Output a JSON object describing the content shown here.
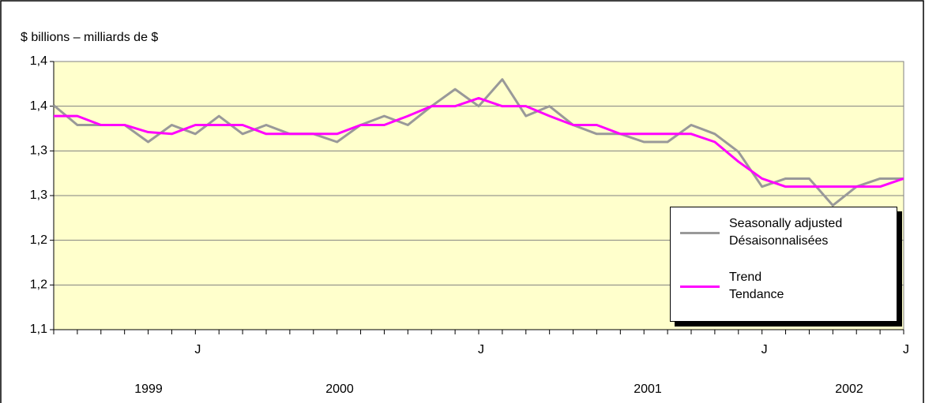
{
  "chart_data": {
    "type": "line",
    "title": "$ billions – milliards de $",
    "categories": [
      null,
      null,
      null,
      null,
      null,
      null,
      "J",
      null,
      null,
      null,
      null,
      null,
      null,
      null,
      null,
      null,
      null,
      null,
      "J",
      null,
      null,
      null,
      null,
      null,
      null,
      null,
      null,
      null,
      null,
      null,
      "J",
      null,
      null,
      null,
      null,
      null,
      "J"
    ],
    "year_labels": [
      "1999",
      "2000",
      "2001",
      "2002"
    ],
    "series": [
      {
        "name": "Seasonally adjusted\nDésaisonnalisées",
        "color": "#999999",
        "values": [
          1.351,
          1.329,
          1.329,
          1.329,
          1.31,
          1.329,
          1.319,
          1.339,
          1.319,
          1.329,
          1.319,
          1.319,
          1.31,
          1.329,
          1.339,
          1.329,
          1.35,
          1.369,
          1.35,
          1.38,
          1.339,
          1.35,
          1.329,
          1.319,
          1.319,
          1.31,
          1.31,
          1.329,
          1.319,
          1.299,
          1.26,
          1.269,
          1.269,
          1.239,
          1.26,
          1.269,
          1.269
        ]
      },
      {
        "name": "Trend\nTendance",
        "color": "#ff00ff",
        "values": [
          1.339,
          1.339,
          1.329,
          1.329,
          1.321,
          1.319,
          1.329,
          1.329,
          1.329,
          1.319,
          1.319,
          1.319,
          1.319,
          1.329,
          1.329,
          1.339,
          1.35,
          1.35,
          1.359,
          1.35,
          1.35,
          1.339,
          1.329,
          1.329,
          1.319,
          1.319,
          1.319,
          1.319,
          1.31,
          1.288,
          1.269,
          1.26,
          1.26,
          1.26,
          1.26,
          1.26,
          1.269
        ]
      }
    ],
    "ylim": [
      1.1,
      1.4
    ],
    "yticks": [
      {
        "value": 1.1,
        "label": "1,1"
      },
      {
        "value": 1.15,
        "label": "1,2"
      },
      {
        "value": 1.2,
        "label": "1,2"
      },
      {
        "value": 1.25,
        "label": "1,3"
      },
      {
        "value": 1.3,
        "label": "1,3"
      },
      {
        "value": 1.35,
        "label": "1,4"
      },
      {
        "value": 1.4,
        "label": "1,4"
      }
    ],
    "grid": true,
    "background": "#ffffcc"
  }
}
